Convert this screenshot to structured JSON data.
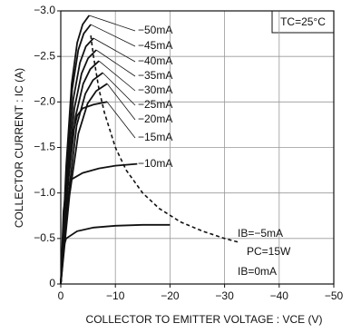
{
  "chart_data": {
    "type": "line",
    "xlabel": "COLLECTOR TO EMITTER VOLTAGE : VCE (V)",
    "ylabel": "COLLECTOR CURRENT : IC (A)",
    "annotations": [
      "TC=25°C",
      "IB=0mA"
    ],
    "xlim": [
      0,
      -50
    ],
    "ylim": [
      0,
      -3.0
    ],
    "xticks": [
      0,
      {
        "value": -10,
        "label": "−10"
      },
      {
        "value": -20,
        "label": "−20"
      },
      {
        "value": -30,
        "label": "−30"
      },
      {
        "value": -40,
        "label": "−40"
      },
      {
        "value": -50,
        "label": "−50"
      }
    ],
    "yticks": [
      0,
      {
        "value": -0.5,
        "label": "−0.5"
      },
      {
        "value": -1.0,
        "label": "−1.0"
      },
      {
        "value": -1.5,
        "label": "−1.5"
      },
      {
        "value": -2.0,
        "label": "−2.0"
      },
      {
        "value": -2.5,
        "label": "−2.5"
      },
      {
        "value": -3.0,
        "label": "−3.0"
      }
    ],
    "grid": true,
    "series": [
      {
        "name": "−50mA",
        "color": "#111111",
        "x": [
          0,
          -1,
          -2,
          -3,
          -4,
          -5.2
        ],
        "values": [
          0,
          -1.3,
          -2.2,
          -2.65,
          -2.85,
          -2.95
        ]
      },
      {
        "name": "−45mA",
        "color": "#111111",
        "x": [
          0,
          -1.05,
          -2.1,
          -3.2,
          -4.2,
          -5.5
        ],
        "values": [
          0,
          -1.25,
          -2.14,
          -2.57,
          -2.75,
          -2.85
        ]
      },
      {
        "name": "−40mA",
        "color": "#111111",
        "x": [
          0,
          -1.1,
          -2.3,
          -3.5,
          -4.6,
          -6
        ],
        "values": [
          0,
          -1.19,
          -2.03,
          -2.43,
          -2.61,
          -2.7
        ]
      },
      {
        "name": "−35mA",
        "color": "#111111",
        "x": [
          0,
          -1.2,
          -2.5,
          -3.8,
          -5,
          -6.5
        ],
        "values": [
          0,
          -1.13,
          -1.93,
          -2.31,
          -2.48,
          -2.57
        ]
      },
      {
        "name": "−30mA",
        "color": "#111111",
        "x": [
          0,
          -1.3,
          -2.7,
          -4.1,
          -5.4,
          -7
        ],
        "values": [
          0,
          -1.08,
          -1.84,
          -2.2,
          -2.36,
          -2.45
        ]
      },
      {
        "name": "−25mA",
        "color": "#111111",
        "x": [
          0,
          -1.5,
          -2.9,
          -4.5,
          -5.9,
          -7.7
        ],
        "values": [
          0,
          -1.02,
          -1.74,
          -2.09,
          -2.24,
          -2.32
        ]
      },
      {
        "name": "−20mA",
        "color": "#111111",
        "x": [
          0,
          -1.6,
          -3.2,
          -4.9,
          -6.5,
          -8.5
        ],
        "values": [
          0,
          -0.97,
          -1.65,
          -1.98,
          -2.12,
          -2.2
        ]
      },
      {
        "name": "−15mA",
        "color": "#111111",
        "x": [
          0,
          -1,
          -2,
          -3,
          -4,
          -6,
          -8.5
        ],
        "values": [
          0,
          -1.0,
          -1.6,
          -1.85,
          -1.93,
          -1.97,
          -2.0
        ]
      },
      {
        "name": "−10mA",
        "color": "#111111",
        "x": [
          0,
          -0.5,
          -1,
          -2,
          -4,
          -7,
          -10,
          -14
        ],
        "values": [
          0,
          -0.8,
          -1.05,
          -1.15,
          -1.22,
          -1.27,
          -1.3,
          -1.32
        ]
      },
      {
        "name": "IB=−5mA",
        "color": "#111111",
        "x": [
          0,
          -0.5,
          -1,
          -3,
          -6,
          -10,
          -15,
          -20
        ],
        "values": [
          0,
          -0.4,
          -0.5,
          -0.58,
          -0.62,
          -0.64,
          -0.65,
          -0.65
        ]
      },
      {
        "name": "PC=15W",
        "color": "#111111",
        "dashed": true,
        "x": [
          -5.5,
          -6,
          -7,
          -8,
          -10,
          -12,
          -15,
          -18,
          -22,
          -26,
          -30,
          -32.5
        ],
        "values": [
          -2.73,
          -2.5,
          -2.14,
          -1.88,
          -1.5,
          -1.25,
          -1.0,
          -0.83,
          -0.68,
          -0.58,
          -0.5,
          -0.46
        ]
      }
    ]
  }
}
